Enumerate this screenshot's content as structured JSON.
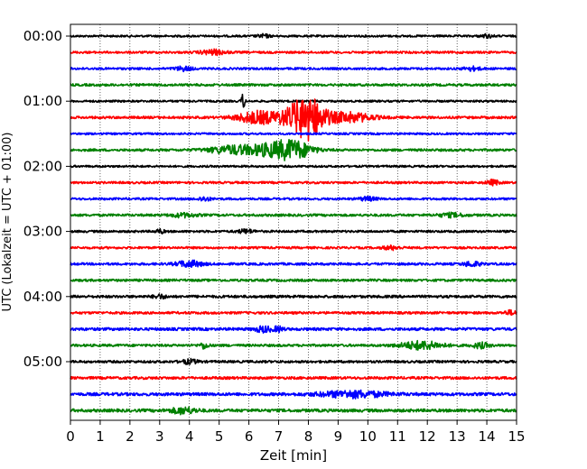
{
  "chart_data": {
    "type": "line",
    "title": "",
    "xlabel": "Zeit  [min]",
    "ylabel": "UTC (Lokalzeit = UTC + 01:00)",
    "xlim": [
      0,
      15
    ],
    "x_ticks": [
      "0",
      "1",
      "2",
      "3",
      "4",
      "5",
      "6",
      "7",
      "8",
      "9",
      "10",
      "11",
      "12",
      "13",
      "14",
      "15"
    ],
    "y_tick_labels": [
      "00:00",
      "01:00",
      "02:00",
      "03:00",
      "04:00",
      "05:00"
    ],
    "grid": "vertical dotted lines at each minute",
    "trace_colors": [
      "#000000",
      "#ff0000",
      "#0000ff",
      "#008000"
    ],
    "traces": [
      {
        "hour_start": "00:00",
        "color": "#000000",
        "noise": 0.5,
        "events": [
          [
            6.5,
            0.8,
            0.15
          ],
          [
            14,
            0.8,
            0.15
          ]
        ]
      },
      {
        "hour_start": "00:15",
        "color": "#ff0000",
        "noise": 0.55,
        "events": [
          [
            4.8,
            1.2,
            0.3
          ]
        ]
      },
      {
        "hour_start": "00:30",
        "color": "#0000ff",
        "noise": 0.55,
        "events": [
          [
            3.8,
            1.0,
            0.2
          ],
          [
            13.5,
            0.9,
            0.2
          ]
        ]
      },
      {
        "hour_start": "00:45",
        "color": "#008000",
        "noise": 0.6,
        "events": []
      },
      {
        "hour_start": "01:00",
        "color": "#000000",
        "noise": 0.5,
        "events": [
          [
            5.8,
            4.5,
            0.04
          ]
        ]
      },
      {
        "hour_start": "01:15",
        "color": "#ff0000",
        "noise": 0.6,
        "events": [
          [
            6.3,
            3.0,
            0.5
          ],
          [
            7.6,
            4.5,
            0.45
          ],
          [
            8.05,
            8.0,
            0.35
          ],
          [
            9.3,
            2.5,
            0.6
          ]
        ]
      },
      {
        "hour_start": "01:30",
        "color": "#0000ff",
        "noise": 0.5,
        "events": []
      },
      {
        "hour_start": "01:45",
        "color": "#008000",
        "noise": 0.6,
        "events": [
          [
            5.5,
            2.0,
            0.6
          ],
          [
            7.0,
            3.5,
            0.6
          ],
          [
            7.6,
            2.5,
            0.4
          ]
        ]
      },
      {
        "hour_start": "02:00",
        "color": "#000000",
        "noise": 0.5,
        "events": []
      },
      {
        "hour_start": "02:15",
        "color": "#ff0000",
        "noise": 0.55,
        "events": [
          [
            14.2,
            1.2,
            0.15
          ]
        ]
      },
      {
        "hour_start": "02:30",
        "color": "#0000ff",
        "noise": 0.55,
        "events": [
          [
            4.5,
            1.0,
            0.15
          ],
          [
            10,
            0.9,
            0.2
          ]
        ]
      },
      {
        "hour_start": "02:45",
        "color": "#008000",
        "noise": 0.6,
        "events": [
          [
            3.8,
            0.9,
            0.3
          ],
          [
            12.8,
            0.9,
            0.3
          ]
        ]
      },
      {
        "hour_start": "03:00",
        "color": "#000000",
        "noise": 0.55,
        "events": [
          [
            3.0,
            1.0,
            0.1
          ],
          [
            5.9,
            0.9,
            0.2
          ]
        ]
      },
      {
        "hour_start": "03:15",
        "color": "#ff0000",
        "noise": 0.55,
        "events": [
          [
            10.8,
            0.9,
            0.2
          ]
        ]
      },
      {
        "hour_start": "03:30",
        "color": "#0000ff",
        "noise": 0.6,
        "events": [
          [
            4.0,
            1.6,
            0.3
          ],
          [
            13.5,
            1.2,
            0.2
          ]
        ]
      },
      {
        "hour_start": "03:45",
        "color": "#008000",
        "noise": 0.6,
        "events": []
      },
      {
        "hour_start": "04:00",
        "color": "#000000",
        "noise": 0.65,
        "events": [
          [
            3.0,
            0.9,
            0.15
          ]
        ]
      },
      {
        "hour_start": "04:15",
        "color": "#ff0000",
        "noise": 0.6,
        "events": [
          [
            14.8,
            1.0,
            0.15
          ]
        ]
      },
      {
        "hour_start": "04:30",
        "color": "#0000ff",
        "noise": 0.7,
        "events": [
          [
            6.5,
            1.4,
            0.2
          ],
          [
            7.0,
            1.2,
            0.1
          ]
        ]
      },
      {
        "hour_start": "04:45",
        "color": "#008000",
        "noise": 0.6,
        "events": [
          [
            4.5,
            1.5,
            0.1
          ],
          [
            11.8,
            2.0,
            0.5
          ],
          [
            13.8,
            1.3,
            0.2
          ]
        ]
      },
      {
        "hour_start": "05:00",
        "color": "#000000",
        "noise": 0.6,
        "events": [
          [
            4.0,
            1.0,
            0.2
          ]
        ]
      },
      {
        "hour_start": "05:15",
        "color": "#ff0000",
        "noise": 0.65,
        "events": []
      },
      {
        "hour_start": "05:30",
        "color": "#0000ff",
        "noise": 0.75,
        "events": [
          [
            9.5,
            1.6,
            0.8
          ]
        ]
      },
      {
        "hour_start": "05:45",
        "color": "#008000",
        "noise": 0.75,
        "events": [
          [
            3.8,
            1.5,
            0.3
          ]
        ]
      }
    ]
  }
}
